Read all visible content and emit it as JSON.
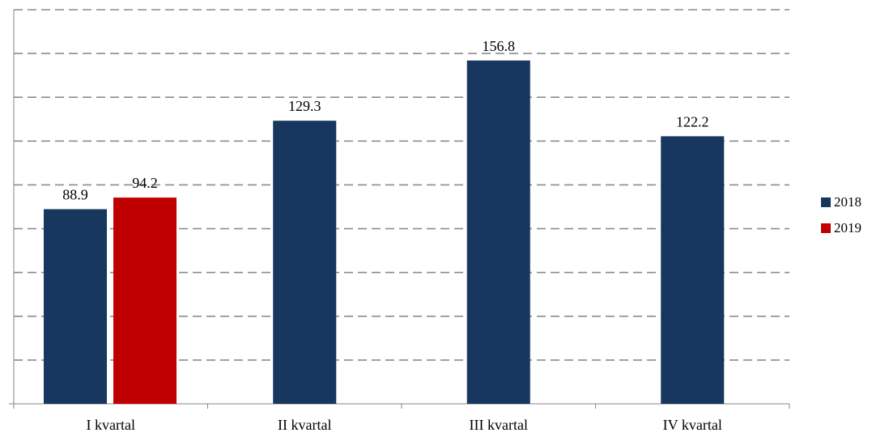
{
  "chart_data": {
    "type": "bar",
    "title": "",
    "xlabel": "",
    "ylabel": "",
    "categories": [
      "I kvartal",
      "II kvartal",
      "III kvartal",
      "IV kvartal"
    ],
    "series": [
      {
        "name": "2018",
        "color": "#17375E",
        "values": [
          88.9,
          129.3,
          156.8,
          122.2
        ]
      },
      {
        "name": "2019",
        "color": "#C00000",
        "values": [
          94.2,
          null,
          null,
          null
        ]
      }
    ],
    "ylim": [
      0,
      180
    ],
    "gridlines": [
      20,
      40,
      60,
      80,
      100,
      120,
      140,
      160,
      180
    ],
    "grid": true,
    "grid_style": "dashed",
    "y_tick_labels_visible": false,
    "data_labels": true,
    "legend_position": "right"
  }
}
